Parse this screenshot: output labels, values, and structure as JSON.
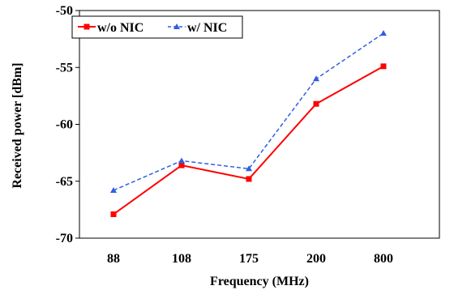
{
  "chart_data": {
    "type": "line",
    "categories": [
      "88",
      "108",
      "175",
      "200",
      "800"
    ],
    "xlabel": "Frequency (MHz)",
    "ylabel": "Received power [dBm]",
    "ylim": [
      -70,
      -50
    ],
    "yticks": [
      -50,
      -55,
      -60,
      -65,
      -70
    ],
    "grid": false,
    "legend_position": "top-left",
    "series": [
      {
        "name": "w/o NIC",
        "values": [
          -67.9,
          -63.6,
          -64.8,
          -58.2,
          -54.9
        ],
        "color": "#ff0000",
        "line_style": "solid",
        "marker": "square"
      },
      {
        "name": "w/ NIC",
        "values": [
          -65.8,
          -63.2,
          -63.9,
          -56.0,
          -52.0
        ],
        "color": "#2f5fe0",
        "line_style": "dashed",
        "marker": "triangle"
      }
    ]
  }
}
